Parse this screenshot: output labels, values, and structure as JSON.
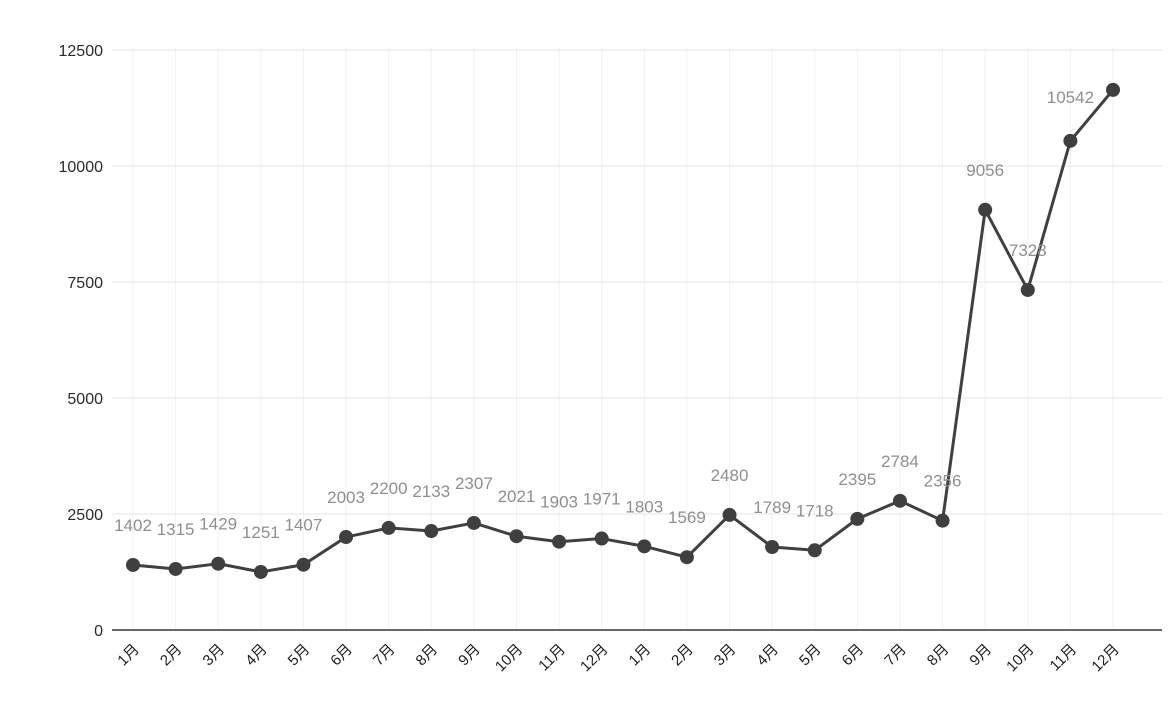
{
  "chart_data": {
    "type": "line",
    "title": "",
    "xlabel": "",
    "ylabel": "",
    "legend": "none",
    "grid": "horizontal-and-vertical",
    "x_labels": [
      "1月",
      "2月",
      "3月",
      "4月",
      "5月",
      "6月",
      "7月",
      "8月",
      "9月",
      "10月",
      "11月",
      "12月",
      "1月",
      "2月",
      "3月",
      "4月",
      "5月",
      "6月",
      "7月",
      "8月",
      "9月",
      "10月",
      "11月",
      "12月"
    ],
    "values": [
      1402,
      1315,
      1429,
      1251,
      1407,
      2003,
      2200,
      2133,
      2307,
      2021,
      1903,
      1971,
      1803,
      1569,
      2480,
      1789,
      1718,
      2395,
      2784,
      2356,
      9056,
      7328,
      10542,
      11640
    ],
    "point_labels": [
      "1402",
      "1315",
      "1429",
      "1251",
      "1407",
      "2003",
      "2200",
      "2133",
      "2307",
      "2021",
      "1903",
      "1971",
      "1803",
      "1569",
      "2480",
      "1789",
      "1718",
      "2395",
      "2784",
      "2356",
      "9056",
      "7328",
      "10542",
      ""
    ],
    "yticks": [
      0,
      2500,
      5000,
      7500,
      10000,
      12500
    ],
    "ytick_labels": [
      "0",
      "2500",
      "5000",
      "7500",
      "10000",
      "12500"
    ],
    "ylim": [
      0,
      12500
    ],
    "colors": {
      "line": "#404040",
      "point": "#3f3f3f",
      "point_label": "#8f8f8f",
      "y_axis_label": "#2b2b2b",
      "x_axis_label": "#1d1d1d",
      "gridline": "#e4e4e4",
      "vertical_gridline": "#f2f2f2",
      "baseline": "#666666",
      "background": "#ffffff"
    }
  }
}
